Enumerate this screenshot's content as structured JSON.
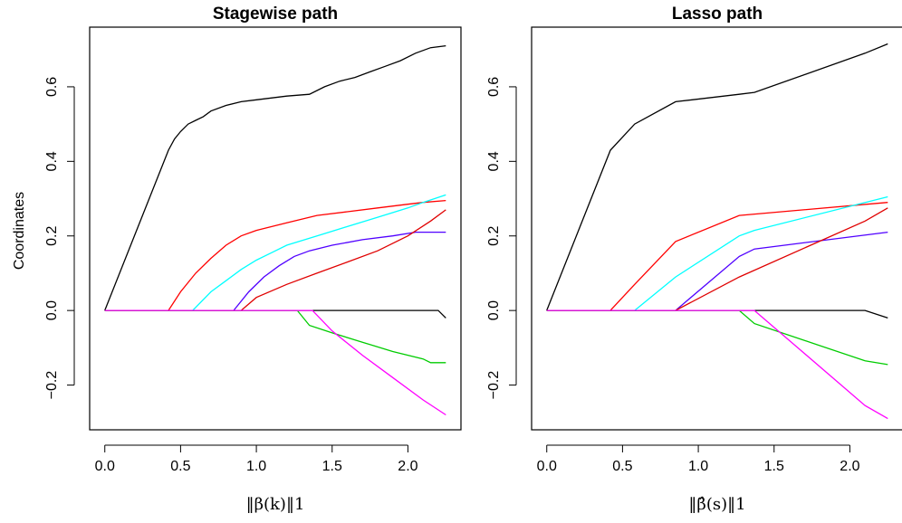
{
  "chart_data": [
    {
      "type": "line",
      "title": "Stagewise path",
      "ylabel": "Coordinates",
      "xlabel": "‖β(k)‖1",
      "xlim": [
        -0.1,
        2.35
      ],
      "ylim": [
        -0.32,
        0.76
      ],
      "xticks": [
        "0.0",
        "0.5",
        "1.0",
        "1.5",
        "2.0"
      ],
      "yticks": [
        "−0.2",
        "0.0",
        "0.2",
        "0.4",
        "0.6"
      ],
      "grid": false,
      "series": [
        {
          "color": "#000000",
          "x": [
            0,
            0.42,
            0.46,
            0.5,
            0.55,
            0.6,
            0.65,
            0.7,
            0.8,
            0.9,
            1.0,
            1.2,
            1.35,
            1.45,
            1.55,
            1.65,
            1.75,
            1.85,
            1.95,
            2.05,
            2.15,
            2.25
          ],
          "y": [
            0,
            0.43,
            0.46,
            0.48,
            0.5,
            0.51,
            0.52,
            0.535,
            0.55,
            0.56,
            0.565,
            0.575,
            0.58,
            0.6,
            0.615,
            0.625,
            0.64,
            0.655,
            0.67,
            0.69,
            0.705,
            0.71
          ]
        },
        {
          "color": "#FF0000",
          "x": [
            0,
            0.42,
            0.5,
            0.6,
            0.7,
            0.8,
            0.9,
            1.0,
            1.2,
            1.4,
            1.6,
            1.8,
            2.0,
            2.1,
            2.25
          ],
          "y": [
            0,
            0,
            0.05,
            0.1,
            0.14,
            0.175,
            0.2,
            0.215,
            0.235,
            0.255,
            0.265,
            0.275,
            0.285,
            0.29,
            0.295
          ]
        },
        {
          "color": "#00FFFF",
          "x": [
            0,
            0.58,
            0.7,
            0.8,
            0.9,
            1.0,
            1.1,
            1.2,
            1.4,
            1.6,
            1.8,
            2.0,
            2.1,
            2.25
          ],
          "y": [
            0,
            0,
            0.05,
            0.08,
            0.11,
            0.135,
            0.155,
            0.175,
            0.2,
            0.225,
            0.25,
            0.275,
            0.29,
            0.31
          ]
        },
        {
          "color": "#5000FF",
          "x": [
            0,
            0.85,
            0.95,
            1.05,
            1.15,
            1.25,
            1.35,
            1.5,
            1.7,
            1.9,
            2.05,
            2.25
          ],
          "y": [
            0,
            0,
            0.05,
            0.09,
            0.12,
            0.145,
            0.16,
            0.175,
            0.19,
            0.2,
            0.21,
            0.21
          ]
        },
        {
          "color": "#E00000",
          "x": [
            0,
            0.9,
            1.0,
            1.2,
            1.4,
            1.6,
            1.8,
            2.0,
            2.15,
            2.25
          ],
          "y": [
            0,
            0,
            0.035,
            0.07,
            0.1,
            0.13,
            0.16,
            0.2,
            0.24,
            0.27
          ]
        },
        {
          "color": "#000000",
          "x": [
            0,
            2.2,
            2.25
          ],
          "y": [
            0,
            0,
            -0.02
          ]
        },
        {
          "color": "#00CC00",
          "x": [
            0,
            1.27,
            1.35,
            1.5,
            1.7,
            1.9,
            2.1,
            2.15,
            2.25
          ],
          "y": [
            0,
            0,
            -0.04,
            -0.06,
            -0.085,
            -0.11,
            -0.13,
            -0.14,
            -0.14
          ]
        },
        {
          "color": "#FF00FF",
          "x": [
            0,
            1.37,
            1.5,
            1.7,
            1.9,
            2.1,
            2.25
          ],
          "y": [
            0,
            0,
            -0.055,
            -0.12,
            -0.18,
            -0.24,
            -0.28
          ]
        }
      ]
    },
    {
      "type": "line",
      "title": "Lasso path",
      "ylabel": "",
      "xlabel": "‖β̂(s)‖1",
      "xlim": [
        -0.1,
        2.35
      ],
      "ylim": [
        -0.32,
        0.76
      ],
      "xticks": [
        "0.0",
        "0.5",
        "1.0",
        "1.5",
        "2.0"
      ],
      "yticks": [
        "−0.2",
        "0.0",
        "0.2",
        "0.4",
        "0.6"
      ],
      "grid": false,
      "series": [
        {
          "color": "#000000",
          "x": [
            0,
            0.42,
            0.58,
            0.85,
            1.27,
            1.37,
            2.1,
            2.25
          ],
          "y": [
            0,
            0.43,
            0.5,
            0.56,
            0.58,
            0.585,
            0.69,
            0.715
          ]
        },
        {
          "color": "#FF0000",
          "x": [
            0,
            0.42,
            0.58,
            0.85,
            1.27,
            2.25
          ],
          "y": [
            0,
            0,
            0.07,
            0.185,
            0.255,
            0.29
          ]
        },
        {
          "color": "#00FFFF",
          "x": [
            0,
            0.58,
            0.85,
            1.27,
            1.37,
            2.25
          ],
          "y": [
            0,
            0,
            0.09,
            0.2,
            0.215,
            0.305
          ]
        },
        {
          "color": "#5000FF",
          "x": [
            0,
            0.85,
            1.27,
            1.37,
            2.25
          ],
          "y": [
            0,
            0,
            0.145,
            0.165,
            0.21
          ]
        },
        {
          "color": "#E00000",
          "x": [
            0,
            0.85,
            1.27,
            2.1,
            2.25
          ],
          "y": [
            0,
            0,
            0.09,
            0.24,
            0.275
          ]
        },
        {
          "color": "#000000",
          "x": [
            0,
            2.1,
            2.25
          ],
          "y": [
            0,
            0,
            -0.02
          ]
        },
        {
          "color": "#00CC00",
          "x": [
            0,
            1.27,
            1.37,
            2.1,
            2.25
          ],
          "y": [
            0,
            0,
            -0.035,
            -0.135,
            -0.145
          ]
        },
        {
          "color": "#FF00FF",
          "x": [
            0,
            1.37,
            2.1,
            2.25
          ],
          "y": [
            0,
            0,
            -0.255,
            -0.29
          ]
        }
      ]
    }
  ]
}
